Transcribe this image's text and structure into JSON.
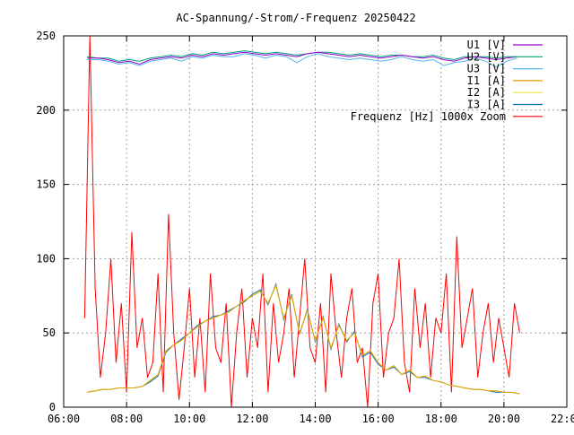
{
  "chart_data": {
    "type": "line",
    "title": "AC-Spannung/-Strom/-Frequenz 20250422",
    "xlabel": "",
    "ylabel": "",
    "xlim_hours": [
      6,
      22
    ],
    "ylim": [
      0,
      250
    ],
    "grid": true,
    "legend_position": "top-right",
    "x_ticks": [
      "06:00",
      "08:00",
      "10:00",
      "12:00",
      "14:00",
      "16:00",
      "18:00",
      "20:00",
      "22:00"
    ],
    "y_ticks": [
      "0",
      "50",
      "100",
      "150",
      "200",
      "250"
    ],
    "series": [
      {
        "name": "U1 [V]",
        "color": "#9400d3",
        "start_hour": 6.75,
        "step_minutes": 20,
        "values": [
          235,
          235,
          234,
          232,
          233,
          231,
          234,
          235,
          236,
          235,
          237,
          236,
          238,
          237,
          238,
          239,
          238,
          237,
          238,
          237,
          236,
          238,
          239,
          238,
          237,
          236,
          237,
          236,
          235,
          236,
          237,
          236,
          235,
          236,
          234,
          233,
          235,
          236,
          235,
          234,
          235,
          236
        ]
      },
      {
        "name": "U2 [V]",
        "color": "#009e73",
        "start_hour": 6.75,
        "step_minutes": 20,
        "values": [
          236,
          235,
          235,
          233,
          234,
          233,
          235,
          236,
          237,
          236,
          238,
          237,
          239,
          238,
          239,
          240,
          239,
          238,
          239,
          238,
          237,
          238,
          239,
          239,
          238,
          237,
          238,
          237,
          236,
          237,
          237,
          236,
          236,
          237,
          235,
          234,
          236,
          236,
          236,
          235,
          236,
          236
        ]
      },
      {
        "name": "U3 [V]",
        "color": "#56b4e9",
        "start_hour": 6.75,
        "step_minutes": 20,
        "values": [
          234,
          234,
          233,
          231,
          232,
          230,
          233,
          234,
          235,
          233,
          236,
          235,
          237,
          236,
          236,
          238,
          237,
          235,
          237,
          236,
          232,
          236,
          238,
          236,
          235,
          234,
          235,
          234,
          233,
          234,
          236,
          234,
          233,
          234,
          230,
          232,
          233,
          235,
          233,
          229,
          233,
          235
        ]
      },
      {
        "name": "I1 [A]",
        "color": "#e69f00",
        "start_hour": 6.75,
        "step_minutes": 15,
        "values": [
          10,
          11,
          12,
          12,
          13,
          13,
          13,
          14,
          18,
          22,
          38,
          42,
          45,
          50,
          54,
          58,
          60,
          62,
          64,
          68,
          72,
          75,
          78,
          70,
          82,
          60,
          75,
          50,
          65,
          45,
          60,
          40,
          55,
          45,
          50,
          35,
          38,
          30,
          25,
          28,
          22,
          25,
          20,
          21,
          18,
          17,
          15,
          14,
          13,
          12,
          12,
          11,
          11,
          10,
          10,
          9
        ]
      },
      {
        "name": "I2 [A]",
        "color": "#f0e442",
        "start_hour": 6.75,
        "step_minutes": 15,
        "values": [
          10,
          11,
          12,
          12,
          13,
          13,
          13,
          14,
          18,
          22,
          38,
          42,
          45,
          50,
          54,
          58,
          60,
          62,
          64,
          68,
          72,
          75,
          78,
          70,
          82,
          60,
          75,
          50,
          65,
          45,
          60,
          40,
          55,
          45,
          50,
          35,
          38,
          30,
          25,
          28,
          22,
          25,
          20,
          21,
          18,
          17,
          15,
          14,
          13,
          12,
          12,
          11,
          11,
          10,
          10,
          9
        ]
      },
      {
        "name": "I3 [A]",
        "color": "#0072b2",
        "start_hour": 6.75,
        "step_minutes": 15,
        "values": [
          10,
          11,
          12,
          12,
          13,
          13,
          13,
          14,
          17,
          21,
          37,
          42,
          46,
          50,
          55,
          58,
          61,
          62,
          65,
          68,
          71,
          76,
          79,
          69,
          83,
          59,
          76,
          49,
          66,
          44,
          61,
          39,
          56,
          44,
          51,
          34,
          37,
          29,
          25,
          27,
          22,
          24,
          20,
          20,
          18,
          17,
          15,
          14,
          13,
          12,
          12,
          11,
          10,
          10,
          10,
          9
        ]
      },
      {
        "name": "Frequenz [Hz] 1000x Zoom",
        "color": "#ff0000",
        "start_hour": 6.667,
        "step_minutes": 10,
        "values": [
          60,
          250,
          80,
          20,
          50,
          100,
          30,
          70,
          10,
          118,
          40,
          60,
          20,
          30,
          90,
          10,
          130,
          50,
          5,
          40,
          80,
          20,
          60,
          10,
          90,
          40,
          30,
          70,
          0,
          50,
          80,
          20,
          60,
          40,
          90,
          10,
          70,
          30,
          50,
          80,
          20,
          60,
          100,
          40,
          30,
          70,
          10,
          90,
          50,
          20,
          60,
          80,
          30,
          40,
          0,
          70,
          90,
          20,
          50,
          60,
          100,
          30,
          10,
          80,
          40,
          70,
          20,
          60,
          50,
          90,
          10,
          115,
          40,
          60,
          80,
          20,
          50,
          70,
          30,
          60,
          40,
          20,
          70,
          50
        ]
      }
    ]
  }
}
